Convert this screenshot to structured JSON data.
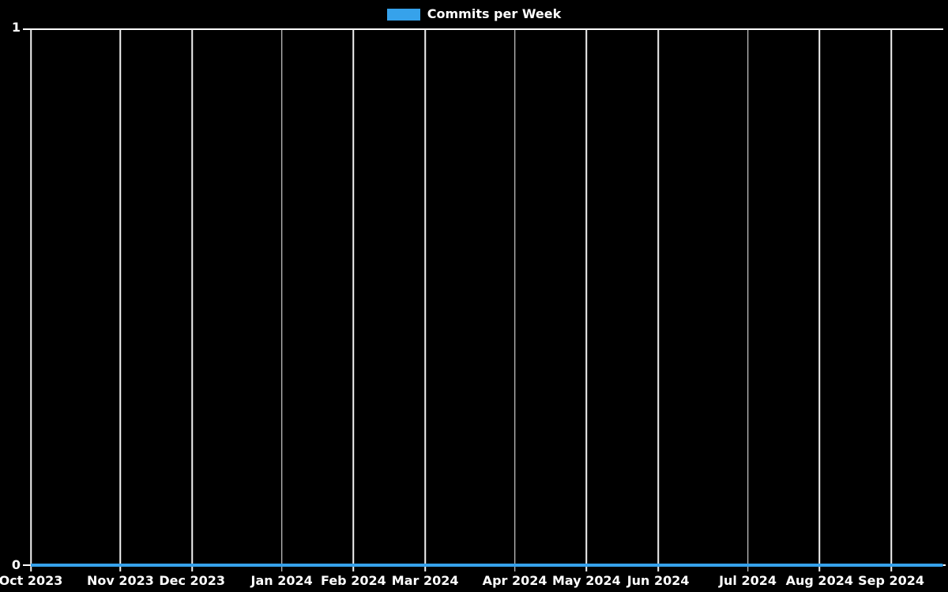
{
  "legend": {
    "label": "Commits per Week",
    "swatch_color": "#36a2eb"
  },
  "y_axis": {
    "top_label": "1",
    "bottom_label": "0"
  },
  "colors": {
    "background": "#000000",
    "series": "#36a2eb",
    "grid": "#ffffff",
    "text": "#ffffff"
  },
  "chart_data": {
    "type": "line",
    "title": "Commits per Week",
    "legend": [
      "Commits per Week"
    ],
    "legend_position": "top-center",
    "xlabel": "",
    "ylabel": "",
    "ylim": [
      0,
      1
    ],
    "y_ticks": [
      0,
      1
    ],
    "x_unit": "week",
    "x_range": [
      "Oct 2023",
      "Sep 2024"
    ],
    "xlim_weeks": [
      0,
      50.95
    ],
    "grid": {
      "vertical_monthly": true,
      "horizontal": "top-only",
      "color": "#ffffff"
    },
    "x_ticks": [
      {
        "label": "Oct 2023",
        "week_offset": 0
      },
      {
        "label": "Nov 2023",
        "week_offset": 5
      },
      {
        "label": "Dec 2023",
        "week_offset": 9
      },
      {
        "label": "Jan 2024",
        "week_offset": 14
      },
      {
        "label": "Feb 2024",
        "week_offset": 18
      },
      {
        "label": "Mar 2024",
        "week_offset": 22
      },
      {
        "label": "Apr 2024",
        "week_offset": 27
      },
      {
        "label": "May 2024",
        "week_offset": 31
      },
      {
        "label": "Jun 2024",
        "week_offset": 35
      },
      {
        "label": "Jul 2024",
        "week_offset": 40
      },
      {
        "label": "Aug 2024",
        "week_offset": 44
      },
      {
        "label": "Sep 2024",
        "week_offset": 48
      }
    ],
    "series": [
      {
        "name": "Commits per Week",
        "color": "#36a2eb",
        "values": [
          0,
          0,
          0,
          0,
          0,
          0,
          0,
          0,
          0,
          0,
          0,
          0,
          0,
          0,
          0,
          0,
          0,
          0,
          0,
          0,
          0,
          0,
          0,
          0,
          0,
          0,
          0,
          0,
          0,
          0,
          0,
          0,
          0,
          0,
          0,
          0,
          0,
          0,
          0,
          0,
          0,
          0,
          0,
          0,
          0,
          0,
          0,
          0,
          0,
          0,
          0,
          0
        ]
      }
    ]
  }
}
